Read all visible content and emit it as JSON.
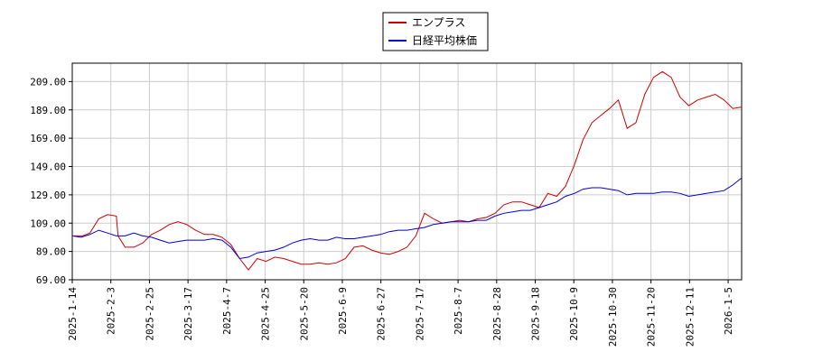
{
  "chart_data": {
    "type": "line",
    "title": "",
    "xlabel": "",
    "ylabel": "",
    "ylim": [
      69,
      222
    ],
    "yticks": [
      "69.00",
      "89.00",
      "109.00",
      "129.00",
      "149.00",
      "169.00",
      "189.00",
      "209.00"
    ],
    "xticks": [
      "2025-1-14",
      "2025-2-3",
      "2025-2-25",
      "2025-3-17",
      "2025-4-7",
      "2025-4-25",
      "2025-5-20",
      "2025-6-9",
      "2025-6-27",
      "2025-7-17",
      "2025-8-7",
      "2025-8-28",
      "2025-9-18",
      "2025-10-9",
      "2025-10-30",
      "2025-11-20",
      "2025-12-11",
      "2026-1-5"
    ],
    "grid": true,
    "legend_position": "top-center",
    "colors": {
      "series1": "#cc0000",
      "series2": "#0000cc"
    },
    "series": [
      {
        "name": "エンプラス",
        "points": [
          [
            0,
            100
          ],
          [
            1.2,
            100
          ],
          [
            2,
            102
          ],
          [
            3,
            112
          ],
          [
            4,
            115
          ],
          [
            5,
            114
          ],
          [
            5.2,
            100
          ],
          [
            6,
            92
          ],
          [
            7,
            92
          ],
          [
            8,
            95
          ],
          [
            9,
            101
          ],
          [
            10,
            104
          ],
          [
            11,
            108
          ],
          [
            12,
            110
          ],
          [
            13,
            108
          ],
          [
            14,
            104
          ],
          [
            15,
            101
          ],
          [
            16,
            101
          ],
          [
            17,
            99
          ],
          [
            18,
            94
          ],
          [
            19,
            84
          ],
          [
            20,
            76
          ],
          [
            21,
            84
          ],
          [
            22,
            82
          ],
          [
            23,
            85
          ],
          [
            24,
            84
          ],
          [
            25,
            82
          ],
          [
            26,
            80
          ],
          [
            27,
            80
          ],
          [
            28,
            81
          ],
          [
            29,
            80
          ],
          [
            30,
            81
          ],
          [
            31,
            84
          ],
          [
            32,
            92
          ],
          [
            33,
            93
          ],
          [
            34,
            90
          ],
          [
            35,
            88
          ],
          [
            36,
            87
          ],
          [
            37,
            89
          ],
          [
            38,
            92
          ],
          [
            39,
            100
          ],
          [
            40,
            116
          ],
          [
            41,
            112
          ],
          [
            42,
            109
          ],
          [
            43,
            110
          ],
          [
            44,
            111
          ],
          [
            45,
            110
          ],
          [
            46,
            112
          ],
          [
            47,
            113
          ],
          [
            48,
            116
          ],
          [
            49,
            122
          ],
          [
            50,
            124
          ],
          [
            51,
            124
          ],
          [
            52,
            122
          ],
          [
            53,
            120
          ],
          [
            54,
            130
          ],
          [
            55,
            128
          ],
          [
            56,
            135
          ],
          [
            57,
            150
          ],
          [
            58,
            168
          ],
          [
            59,
            180
          ],
          [
            60,
            185
          ],
          [
            61,
            190
          ],
          [
            62,
            196
          ],
          [
            63,
            176
          ],
          [
            64,
            180
          ],
          [
            65,
            200
          ],
          [
            66,
            212
          ],
          [
            67,
            216
          ],
          [
            68,
            212
          ],
          [
            69,
            198
          ],
          [
            70,
            192
          ],
          [
            71,
            196
          ],
          [
            72,
            198
          ],
          [
            73,
            200
          ],
          [
            74,
            196
          ],
          [
            75,
            190
          ],
          [
            76,
            191
          ]
        ]
      },
      {
        "name": "日経平均株価",
        "points": [
          [
            0,
            100
          ],
          [
            1,
            99
          ],
          [
            2,
            101
          ],
          [
            3,
            104
          ],
          [
            4,
            102
          ],
          [
            5,
            100
          ],
          [
            6,
            100
          ],
          [
            7,
            102
          ],
          [
            8,
            100
          ],
          [
            9,
            99
          ],
          [
            10,
            97
          ],
          [
            11,
            95
          ],
          [
            12,
            96
          ],
          [
            13,
            97
          ],
          [
            14,
            97
          ],
          [
            15,
            97
          ],
          [
            16,
            98
          ],
          [
            17,
            97
          ],
          [
            18,
            92
          ],
          [
            19,
            84
          ],
          [
            20,
            85
          ],
          [
            21,
            88
          ],
          [
            22,
            89
          ],
          [
            23,
            90
          ],
          [
            24,
            92
          ],
          [
            25,
            95
          ],
          [
            26,
            97
          ],
          [
            27,
            98
          ],
          [
            28,
            97
          ],
          [
            29,
            97
          ],
          [
            30,
            99
          ],
          [
            31,
            98
          ],
          [
            32,
            98
          ],
          [
            33,
            99
          ],
          [
            34,
            100
          ],
          [
            35,
            101
          ],
          [
            36,
            103
          ],
          [
            37,
            104
          ],
          [
            38,
            104
          ],
          [
            39,
            105
          ],
          [
            40,
            106
          ],
          [
            41,
            108
          ],
          [
            42,
            109
          ],
          [
            43,
            110
          ],
          [
            44,
            110
          ],
          [
            45,
            110
          ],
          [
            46,
            111
          ],
          [
            47,
            111
          ],
          [
            48,
            114
          ],
          [
            49,
            116
          ],
          [
            50,
            117
          ],
          [
            51,
            118
          ],
          [
            52,
            118
          ],
          [
            53,
            120
          ],
          [
            54,
            122
          ],
          [
            55,
            124
          ],
          [
            56,
            128
          ],
          [
            57,
            130
          ],
          [
            58,
            133
          ],
          [
            59,
            134
          ],
          [
            60,
            134
          ],
          [
            61,
            133
          ],
          [
            62,
            132
          ],
          [
            63,
            129
          ],
          [
            64,
            130
          ],
          [
            65,
            130
          ],
          [
            66,
            130
          ],
          [
            67,
            131
          ],
          [
            68,
            131
          ],
          [
            69,
            130
          ],
          [
            70,
            128
          ],
          [
            71,
            129
          ],
          [
            72,
            130
          ],
          [
            73,
            131
          ],
          [
            74,
            132
          ],
          [
            75,
            136
          ],
          [
            76,
            141
          ]
        ]
      }
    ]
  }
}
